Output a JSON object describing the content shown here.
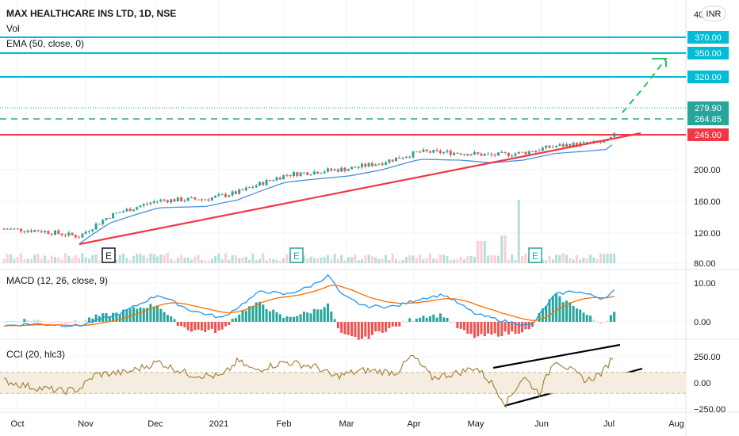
{
  "header": {
    "title": "MAX HEALTHCARE INS LTD, 1D, NSE",
    "vol_label": "Vol",
    "ema_label": "EMA (50, close, 0)",
    "currency": "INR",
    "top_value": "40"
  },
  "price_axis": {
    "ticks": [
      "200.00",
      "160.00",
      "120.00",
      "80.00"
    ],
    "levels": [
      {
        "label": "370.00",
        "color": "#00bcd4",
        "value": 370
      },
      {
        "label": "350.00",
        "color": "#00bcd4",
        "value": 350
      },
      {
        "label": "320.00",
        "color": "#00bcd4",
        "value": 320
      },
      {
        "label": "279.90",
        "color": "#26a69a",
        "value": 279.9
      },
      {
        "label": "264.85",
        "color": "#26a69a",
        "value": 264.85
      },
      {
        "label": "245.00",
        "color": "#f23645",
        "value": 245
      }
    ]
  },
  "macd": {
    "label": "MACD (12, 26, close, 9)",
    "ticks": [
      "10.00",
      "0.00"
    ]
  },
  "cci": {
    "label": "CCI (20, hlc3)",
    "ticks": [
      "250.00",
      "0.00",
      "−250.00"
    ]
  },
  "time_axis": {
    "labels": [
      "Oct",
      "Nov",
      "Dec",
      "2021",
      "Feb",
      "Mar",
      "Apr",
      "May",
      "Jun",
      "Jul",
      "Aug"
    ]
  },
  "event_markers": [
    "E",
    "E",
    "E"
  ],
  "colors": {
    "up": "#26a69a",
    "down": "#ef5350",
    "ema": "#4a90d9",
    "macd_line": "#2196f3",
    "signal_line": "#ff6d00",
    "cci_line": "#a07a2c",
    "resistance": "#00bcd4",
    "support": "#f23645"
  },
  "chart_data": {
    "type": "candlestick",
    "title": "MAX HEALTHCARE INS LTD, 1D, NSE",
    "ylim": [
      80,
      400
    ],
    "close_path": [
      {
        "x": "Oct",
        "y": 112
      },
      {
        "x": "Nov",
        "y": 104
      },
      {
        "x": "Dec",
        "y": 148
      },
      {
        "x": "2021",
        "y": 156
      },
      {
        "x": "Feb",
        "y": 198
      },
      {
        "x": "Mar",
        "y": 202
      },
      {
        "x": "Apr",
        "y": 238
      },
      {
        "x": "May",
        "y": 235
      },
      {
        "x": "Jun",
        "y": 258
      },
      {
        "x": "Jul",
        "y": 279.9
      }
    ],
    "macd_path": [
      {
        "x": "Oct",
        "y": -1
      },
      {
        "x": "Nov",
        "y": -1
      },
      {
        "x": "Dec",
        "y": 7
      },
      {
        "x": "2021",
        "y": 1
      },
      {
        "x": "Feb",
        "y": 10
      },
      {
        "x": "Mar",
        "y": 5
      },
      {
        "x": "Apr",
        "y": 6
      },
      {
        "x": "May",
        "y": 0
      },
      {
        "x": "Jun",
        "y": 8
      },
      {
        "x": "Jul",
        "y": 8
      }
    ],
    "cci_path": [
      {
        "x": "Oct",
        "y": 20
      },
      {
        "x": "Nov",
        "y": -60
      },
      {
        "x": "Dec",
        "y": 200
      },
      {
        "x": "2021",
        "y": 60
      },
      {
        "x": "Feb",
        "y": 200
      },
      {
        "x": "Mar",
        "y": 150
      },
      {
        "x": "Apr",
        "y": 260
      },
      {
        "x": "May",
        "y": -200
      },
      {
        "x": "Jun",
        "y": 200
      },
      {
        "x": "Jul",
        "y": 270
      }
    ]
  }
}
